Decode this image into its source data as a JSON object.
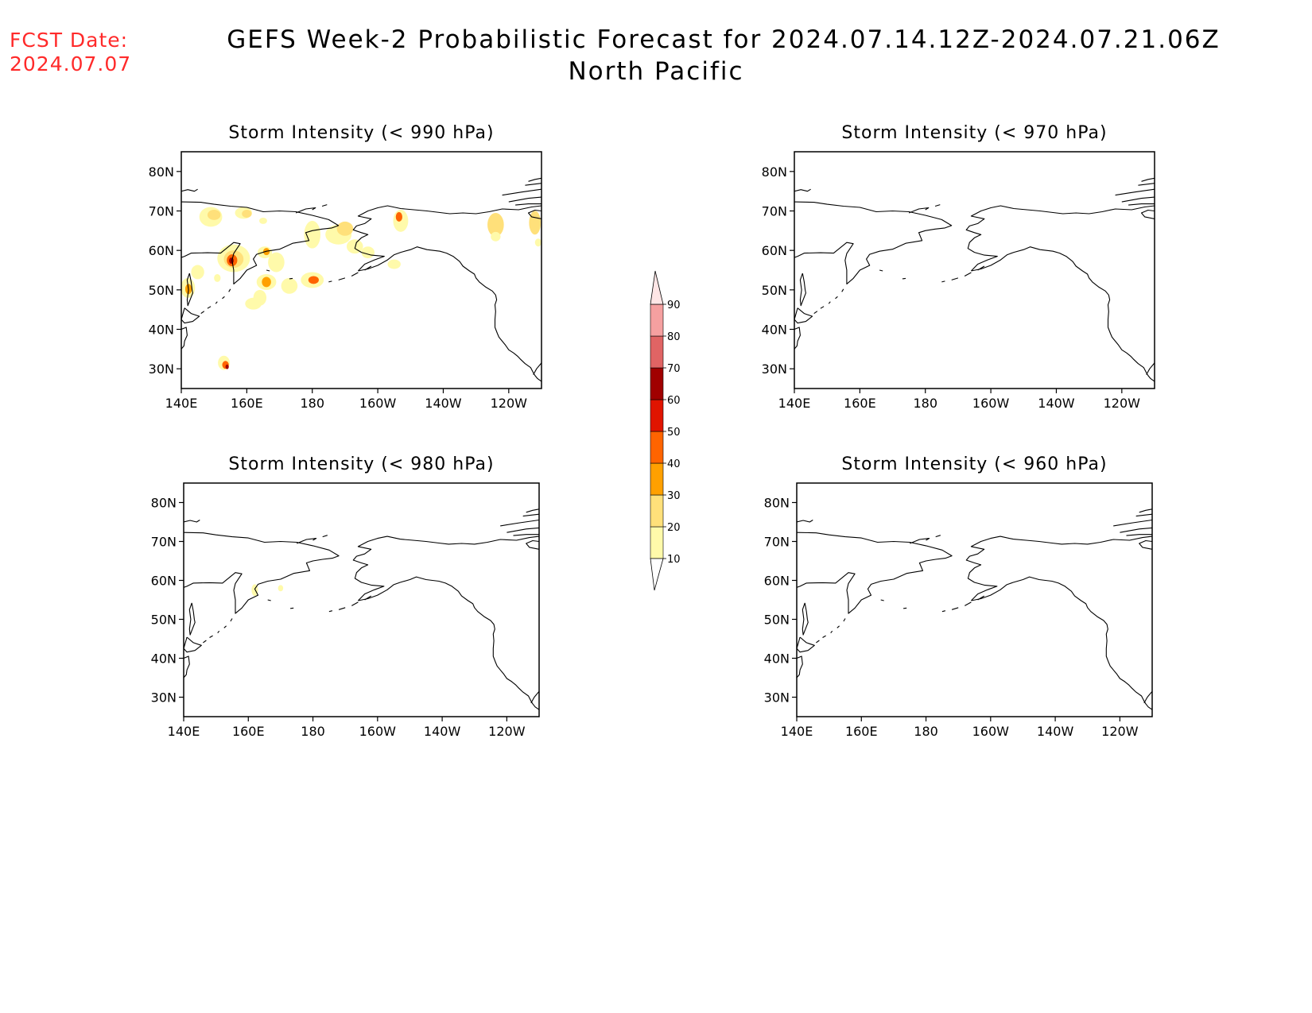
{
  "fcst_date": {
    "label": "FCST Date:",
    "value": "2024.07.07"
  },
  "title": {
    "line1": "GEFS Week-2 Probabilistic Forecast for 2024.07.14.12Z-2024.07.21.06Z",
    "line2": "North Pacific"
  },
  "panels": [
    {
      "id": "p990",
      "title": "Storm Intensity (< 990 hPa)"
    },
    {
      "id": "p970",
      "title": "Storm Intensity (< 970 hPa)"
    },
    {
      "id": "p980",
      "title": "Storm Intensity (< 980 hPa)"
    },
    {
      "id": "p960",
      "title": "Storm Intensity (< 960 hPa)"
    }
  ],
  "axes": {
    "lon_ticks": [
      "140E",
      "160E",
      "180",
      "160W",
      "140W",
      "120W"
    ],
    "lat_ticks": [
      "80N",
      "70N",
      "60N",
      "50N",
      "40N",
      "30N"
    ],
    "lon_range_deg_east": [
      140,
      250
    ],
    "lat_range": [
      25,
      85
    ]
  },
  "colorbar": {
    "levels": [
      10,
      20,
      30,
      40,
      50,
      60,
      70,
      80,
      90
    ],
    "labels": [
      "10",
      "20",
      "30",
      "40",
      "50",
      "60",
      "70",
      "80",
      "90"
    ],
    "colors": [
      "#fffaaa",
      "#ffe07a",
      "#ffa000",
      "#ff6400",
      "#e01400",
      "#a00000",
      "#e06464",
      "#f5a0a0",
      "#ffe6e6"
    ]
  },
  "chart_data": {
    "type": "heatmap",
    "value_units": "probability (%)",
    "panels": [
      {
        "panel": "Storm Intensity (< 990 hPa)",
        "regions": [
          {
            "lon": 154,
            "lat": 58,
            "max_prob": 65
          },
          {
            "lon": 166,
            "lat": 52,
            "max_prob": 45
          },
          {
            "lon": 180,
            "lat": 52,
            "max_prob": 45
          },
          {
            "lon": 153,
            "lat": 31,
            "max_prob": 55
          },
          {
            "lon": 142,
            "lat": 50,
            "max_prob": 35
          },
          {
            "lon": 145,
            "lat": 54,
            "max_prob": 15
          },
          {
            "lon": 149,
            "lat": 68,
            "max_prob": 20
          },
          {
            "lon": 159,
            "lat": 69,
            "max_prob": 20
          },
          {
            "lon": 166,
            "lat": 59,
            "max_prob": 30
          },
          {
            "lon": 188,
            "lat": 66,
            "max_prob": 15
          },
          {
            "lon": 195,
            "lat": 60,
            "max_prob": 15
          },
          {
            "lon": 207,
            "lat": 68,
            "max_prob": 45
          },
          {
            "lon": 205,
            "lat": 57,
            "max_prob": 15
          },
          {
            "lon": 236,
            "lat": 68,
            "max_prob": 20
          },
          {
            "lon": 248,
            "lat": 66,
            "max_prob": 15
          }
        ]
      },
      {
        "panel": "Storm Intensity (< 980 hPa)",
        "regions": [
          {
            "lon": 162,
            "lat": 57,
            "max_prob": 15
          },
          {
            "lon": 170,
            "lat": 58,
            "max_prob": 12
          }
        ]
      },
      {
        "panel": "Storm Intensity (< 970 hPa)",
        "regions": []
      },
      {
        "panel": "Storm Intensity (< 960 hPa)",
        "regions": []
      }
    ]
  }
}
